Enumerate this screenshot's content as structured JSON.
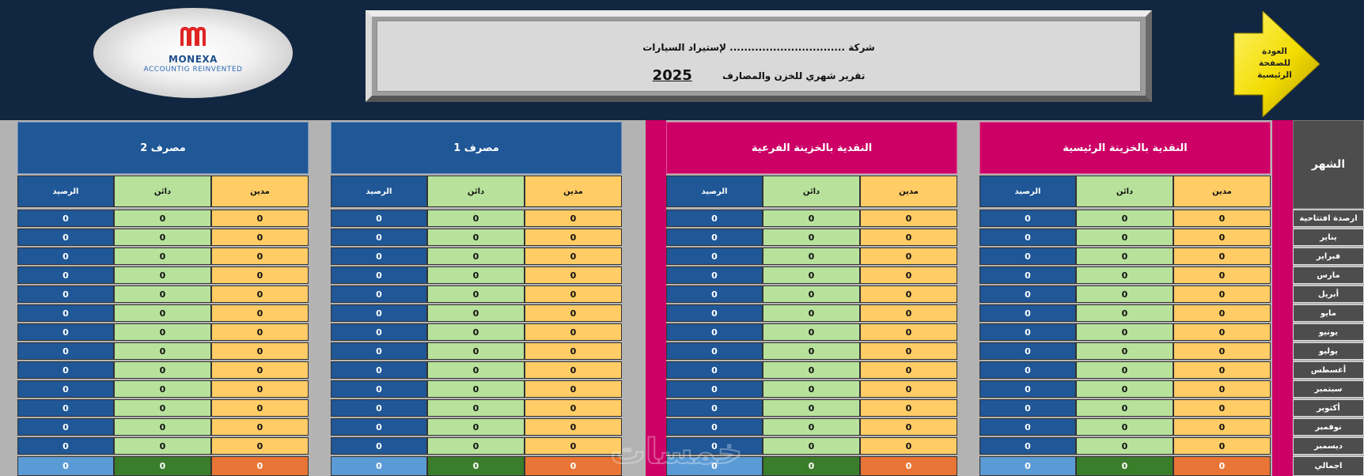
{
  "logo": {
    "brand": "MONEXA",
    "tagline": "ACCOUNTIG REINVENTED"
  },
  "header": {
    "company_line": "شركة ................................ لإستيراد السيارات",
    "report_title": "تقرير شهري للخزن والمصارف",
    "year": "2025"
  },
  "back_button": {
    "label": "العودة للصفحة الرئيسية"
  },
  "month_header": "الشهر",
  "months": [
    "ارصدة افتتاحية",
    "يناير",
    "فبراير",
    "مارس",
    "أبريل",
    "مايو",
    "يونيو",
    "يوليو",
    "أغسطس",
    "سبتمبر",
    "أكتوبر",
    "نوفمبر",
    "ديسمبر",
    "اجمالي"
  ],
  "column_labels": {
    "debit": "مدين",
    "credit": "دائن",
    "balance": "الرصيد"
  },
  "groups": [
    {
      "title": "النقدية بالخزينة الرئيسية",
      "color": "#cc0066",
      "rows": [
        [
          "0",
          "0",
          "0"
        ],
        [
          "0",
          "0",
          "0"
        ],
        [
          "0",
          "0",
          "0"
        ],
        [
          "0",
          "0",
          "0"
        ],
        [
          "0",
          "0",
          "0"
        ],
        [
          "0",
          "0",
          "0"
        ],
        [
          "0",
          "0",
          "0"
        ],
        [
          "0",
          "0",
          "0"
        ],
        [
          "0",
          "0",
          "0"
        ],
        [
          "0",
          "0",
          "0"
        ],
        [
          "0",
          "0",
          "0"
        ],
        [
          "0",
          "0",
          "0"
        ],
        [
          "0",
          "0",
          "0"
        ]
      ],
      "total": [
        "0",
        "0",
        "0"
      ]
    },
    {
      "title": "النقدية بالخزينة الفرعية",
      "color": "#cc0066",
      "rows": [
        [
          "0",
          "0",
          "0"
        ],
        [
          "0",
          "0",
          "0"
        ],
        [
          "0",
          "0",
          "0"
        ],
        [
          "0",
          "0",
          "0"
        ],
        [
          "0",
          "0",
          "0"
        ],
        [
          "0",
          "0",
          "0"
        ],
        [
          "0",
          "0",
          "0"
        ],
        [
          "0",
          "0",
          "0"
        ],
        [
          "0",
          "0",
          "0"
        ],
        [
          "0",
          "0",
          "0"
        ],
        [
          "0",
          "0",
          "0"
        ],
        [
          "0",
          "0",
          "0"
        ],
        [
          "0",
          "0",
          "0"
        ]
      ],
      "total": [
        "0",
        "0",
        "0"
      ]
    },
    {
      "title": "مصرف 1",
      "color": "#1f5797",
      "rows": [
        [
          "0",
          "0",
          "0"
        ],
        [
          "0",
          "0",
          "0"
        ],
        [
          "0",
          "0",
          "0"
        ],
        [
          "0",
          "0",
          "0"
        ],
        [
          "0",
          "0",
          "0"
        ],
        [
          "0",
          "0",
          "0"
        ],
        [
          "0",
          "0",
          "0"
        ],
        [
          "0",
          "0",
          "0"
        ],
        [
          "0",
          "0",
          "0"
        ],
        [
          "0",
          "0",
          "0"
        ],
        [
          "0",
          "0",
          "0"
        ],
        [
          "0",
          "0",
          "0"
        ],
        [
          "0",
          "0",
          "0"
        ]
      ],
      "total": [
        "0",
        "0",
        "0"
      ]
    },
    {
      "title": "مصرف 2",
      "color": "#1f5797",
      "rows": [
        [
          "0",
          "0",
          "0"
        ],
        [
          "0",
          "0",
          "0"
        ],
        [
          "0",
          "0",
          "0"
        ],
        [
          "0",
          "0",
          "0"
        ],
        [
          "0",
          "0",
          "0"
        ],
        [
          "0",
          "0",
          "0"
        ],
        [
          "0",
          "0",
          "0"
        ],
        [
          "0",
          "0",
          "0"
        ],
        [
          "0",
          "0",
          "0"
        ],
        [
          "0",
          "0",
          "0"
        ],
        [
          "0",
          "0",
          "0"
        ],
        [
          "0",
          "0",
          "0"
        ],
        [
          "0",
          "0",
          "0"
        ]
      ],
      "total": [
        "0",
        "0",
        "0"
      ]
    }
  ],
  "watermark": "خمسات"
}
